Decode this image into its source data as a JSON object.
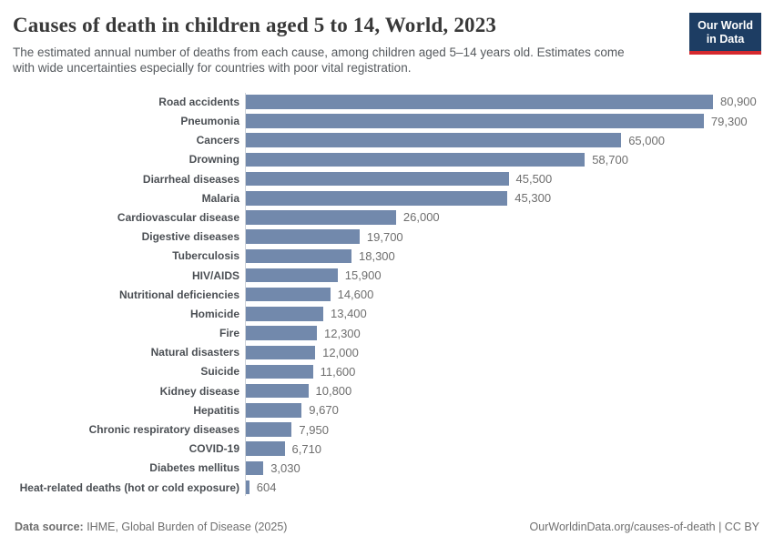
{
  "header": {
    "title": "Causes of death in children aged 5 to 14, World, 2023",
    "subtitle_lines": [
      "The estimated annual number of deaths from each cause, among children aged 5–14 years old. Estimates come",
      "with wide uncertainties especially for countries with poor vital registration."
    ],
    "logo": {
      "line1": "Our World",
      "line2": "in Data"
    }
  },
  "chart_data": {
    "type": "bar",
    "orientation": "horizontal",
    "title": "Causes of death in children aged 5 to 14, World, 2023",
    "xlabel": "",
    "ylabel": "",
    "xlim": [
      0,
      80900
    ],
    "grid": false,
    "legend": false,
    "bar_color": "#7289ac",
    "categories": [
      "Road accidents",
      "Pneumonia",
      "Cancers",
      "Drowning",
      "Diarrheal diseases",
      "Malaria",
      "Cardiovascular disease",
      "Digestive diseases",
      "Tuberculosis",
      "HIV/AIDS",
      "Nutritional deficiencies",
      "Homicide",
      "Fire",
      "Natural disasters",
      "Suicide",
      "Kidney disease",
      "Hepatitis",
      "Chronic respiratory diseases",
      "COVID-19",
      "Diabetes mellitus",
      "Heat-related deaths (hot or cold exposure)"
    ],
    "values": [
      80900,
      79300,
      65000,
      58700,
      45500,
      45300,
      26000,
      19700,
      18300,
      15900,
      14600,
      13400,
      12300,
      12000,
      11600,
      10800,
      9670,
      7950,
      6710,
      3030,
      604
    ],
    "value_labels": [
      "80,900",
      "79,300",
      "65,000",
      "58,700",
      "45,500",
      "45,300",
      "26,000",
      "19,700",
      "18,300",
      "15,900",
      "14,600",
      "13,400",
      "12,300",
      "12,000",
      "11,600",
      "10,800",
      "9,670",
      "7,950",
      "6,710",
      "3,030",
      "604"
    ]
  },
  "footer": {
    "datasource_label": "Data source:",
    "datasource_value": " IHME, Global Burden of Disease (2025)",
    "link": "OurWorldinData.org/causes-of-death",
    "divider": " | ",
    "license": "CC BY"
  },
  "colors": {
    "bar": "#7289ac",
    "axis": "#cdd2d9",
    "logo_navy": "#1d3d63",
    "logo_red": "#d5292e"
  }
}
